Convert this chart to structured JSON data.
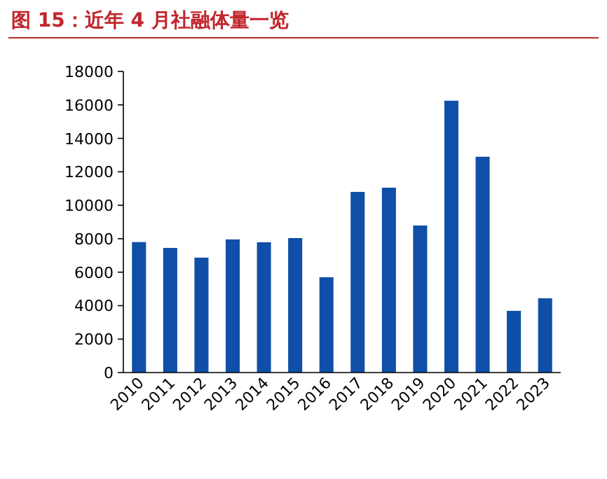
{
  "chart_data": {
    "type": "bar",
    "title": "图 15：近年 4 月社融体量一览",
    "categories": [
      "2010",
      "2011",
      "2012",
      "2013",
      "2014",
      "2015",
      "2016",
      "2017",
      "2018",
      "2019",
      "2020",
      "2021",
      "2022",
      "2023"
    ],
    "values": [
      7800,
      7450,
      6870,
      7960,
      7790,
      8040,
      5700,
      10800,
      11050,
      8790,
      16250,
      12900,
      3690,
      4440
    ],
    "color": "#0f4fa8",
    "ylim": [
      0,
      18000
    ],
    "yticks": [
      0,
      2000,
      4000,
      6000,
      8000,
      10000,
      12000,
      14000,
      16000,
      18000
    ]
  }
}
